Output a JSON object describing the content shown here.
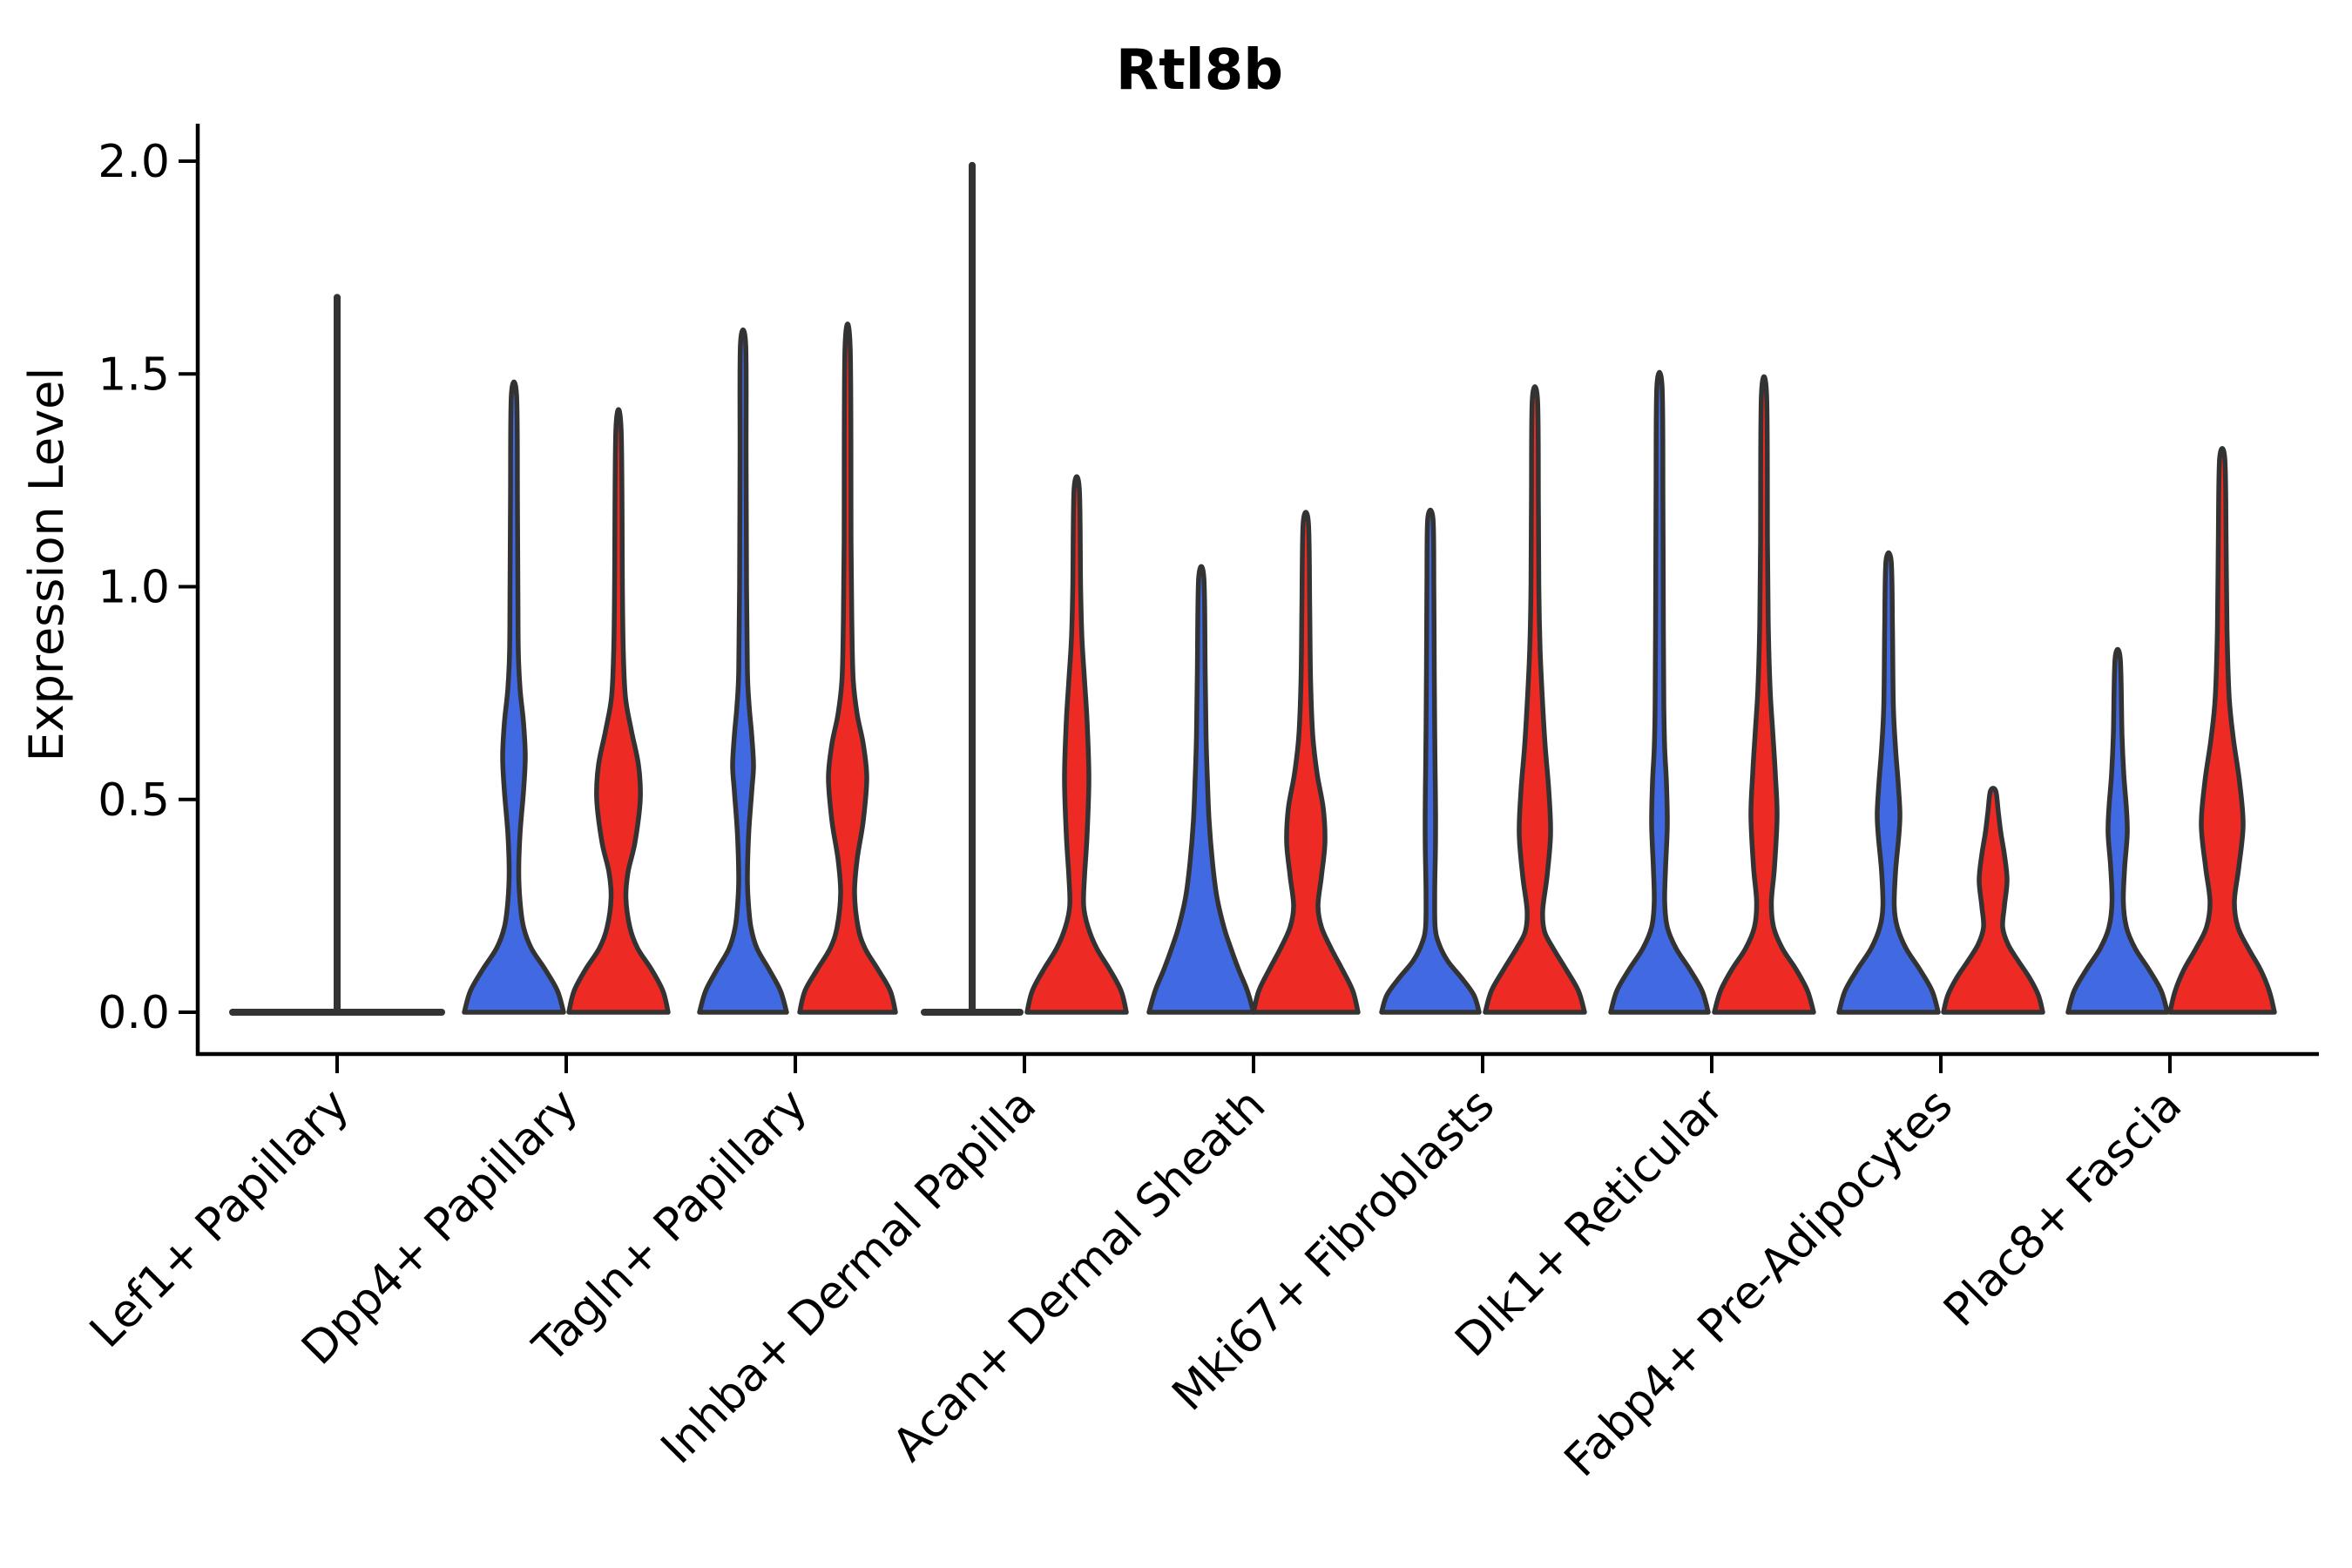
{
  "title": "Rtl8b",
  "chart_data": {
    "type": "violin",
    "title": "Rtl8b",
    "xlabel": "",
    "ylabel": "Expression Level",
    "ylim": [
      0,
      2.0
    ],
    "yticks": [
      0.0,
      0.5,
      1.0,
      1.5,
      2.0
    ],
    "ytick_labels": [
      "0.0",
      "0.5",
      "1.0",
      "1.5",
      "2.0"
    ],
    "grid": false,
    "legend": "none",
    "categories": [
      "Lef1+ Papillary",
      "Dpp4+ Papillary",
      "Tagln+ Papillary",
      "Inhba+ Dermal Papilla",
      "Acan+ Dermal Sheath",
      "Mki67+ Fibroblasts",
      "Dlk1+ Reticular",
      "Fabp4+ Pre-Adipocytes",
      "Plac8+ Fascia"
    ],
    "series": [
      {
        "name": "group-blue",
        "color": "#4169E1"
      },
      {
        "name": "group-red",
        "color": "#ED2B24"
      }
    ],
    "outline_color": "#333333",
    "violins": [
      {
        "category": 0,
        "side": "center",
        "series": null,
        "collapsed": true,
        "max": 1.68,
        "base_halfspan": 120,
        "profile": []
      },
      {
        "category": 1,
        "side": "left",
        "series": 0,
        "collapsed": false,
        "max": 1.45,
        "mode_bulge": 0.6,
        "profile": [
          [
            0,
            57
          ],
          [
            0.05,
            50
          ],
          [
            0.1,
            36
          ],
          [
            0.15,
            20
          ],
          [
            0.2,
            11
          ],
          [
            0.26,
            7
          ],
          [
            0.33,
            5.5
          ],
          [
            0.42,
            7
          ],
          [
            0.52,
            11
          ],
          [
            0.6,
            13
          ],
          [
            0.68,
            11
          ],
          [
            0.76,
            7
          ],
          [
            0.85,
            5
          ],
          [
            1.0,
            4.5
          ],
          [
            1.2,
            4
          ],
          [
            1.45,
            3
          ]
        ]
      },
      {
        "category": 1,
        "side": "right",
        "series": 1,
        "collapsed": false,
        "max": 1.37,
        "mode_bulge": 0.5,
        "profile": [
          [
            0,
            57
          ],
          [
            0.05,
            51
          ],
          [
            0.1,
            38
          ],
          [
            0.15,
            22
          ],
          [
            0.2,
            13
          ],
          [
            0.27,
            8.5
          ],
          [
            0.33,
            11
          ],
          [
            0.4,
            19
          ],
          [
            0.5,
            25
          ],
          [
            0.58,
            23
          ],
          [
            0.66,
            15
          ],
          [
            0.74,
            8
          ],
          [
            0.85,
            5.5
          ],
          [
            1.0,
            4.5
          ],
          [
            1.37,
            3
          ]
        ]
      },
      {
        "category": 2,
        "side": "left",
        "series": 0,
        "collapsed": false,
        "max": 1.57,
        "mode_bulge": 0.58,
        "profile": [
          [
            0,
            50
          ],
          [
            0.05,
            43
          ],
          [
            0.1,
            30
          ],
          [
            0.15,
            16
          ],
          [
            0.2,
            9
          ],
          [
            0.26,
            6
          ],
          [
            0.32,
            5
          ],
          [
            0.42,
            6.5
          ],
          [
            0.52,
            10
          ],
          [
            0.58,
            12
          ],
          [
            0.65,
            10
          ],
          [
            0.72,
            7
          ],
          [
            0.8,
            5
          ],
          [
            1.0,
            4
          ],
          [
            1.3,
            3.5
          ],
          [
            1.57,
            3
          ]
        ]
      },
      {
        "category": 2,
        "side": "right",
        "series": 1,
        "collapsed": false,
        "max": 1.56,
        "mode_bulge": 0.55,
        "profile": [
          [
            0,
            55
          ],
          [
            0.05,
            49
          ],
          [
            0.1,
            35
          ],
          [
            0.15,
            20
          ],
          [
            0.2,
            12
          ],
          [
            0.28,
            8
          ],
          [
            0.36,
            11
          ],
          [
            0.45,
            18
          ],
          [
            0.55,
            22
          ],
          [
            0.63,
            18
          ],
          [
            0.7,
            11
          ],
          [
            0.78,
            6.5
          ],
          [
            0.9,
            5
          ],
          [
            1.1,
            4
          ],
          [
            1.56,
            3
          ]
        ]
      },
      {
        "category": 3,
        "side": "left",
        "series": 0,
        "collapsed": true,
        "max": 1.99,
        "base_halfspan": 55,
        "profile": []
      },
      {
        "category": 3,
        "side": "right",
        "series": 1,
        "collapsed": false,
        "max": 1.23,
        "mode_bulge": 0.55,
        "profile": [
          [
            0,
            57
          ],
          [
            0.05,
            51
          ],
          [
            0.1,
            38
          ],
          [
            0.15,
            23
          ],
          [
            0.2,
            13
          ],
          [
            0.25,
            8
          ],
          [
            0.32,
            9
          ],
          [
            0.42,
            12
          ],
          [
            0.55,
            14
          ],
          [
            0.68,
            12
          ],
          [
            0.78,
            9
          ],
          [
            0.88,
            6
          ],
          [
            1.0,
            4.5
          ],
          [
            1.23,
            3
          ]
        ]
      },
      {
        "category": 4,
        "side": "left",
        "series": 0,
        "collapsed": false,
        "max": 1.02,
        "mode_bulge": 0.0,
        "profile": [
          [
            0,
            60
          ],
          [
            0.05,
            53
          ],
          [
            0.1,
            43
          ],
          [
            0.15,
            34
          ],
          [
            0.2,
            26
          ],
          [
            0.27,
            18
          ],
          [
            0.35,
            13
          ],
          [
            0.45,
            9
          ],
          [
            0.55,
            7
          ],
          [
            0.65,
            5.5
          ],
          [
            0.8,
            4.5
          ],
          [
            1.02,
            3
          ]
        ]
      },
      {
        "category": 4,
        "side": "right",
        "series": 1,
        "collapsed": false,
        "max": 1.15,
        "mode_bulge": 0.4,
        "profile": [
          [
            0,
            60
          ],
          [
            0.05,
            54
          ],
          [
            0.1,
            42
          ],
          [
            0.15,
            29
          ],
          [
            0.2,
            18
          ],
          [
            0.25,
            14
          ],
          [
            0.32,
            18
          ],
          [
            0.4,
            22
          ],
          [
            0.48,
            20
          ],
          [
            0.56,
            13
          ],
          [
            0.65,
            8
          ],
          [
            0.78,
            5.5
          ],
          [
            0.95,
            4.5
          ],
          [
            1.15,
            3
          ]
        ]
      },
      {
        "category": 5,
        "side": "left",
        "series": 0,
        "collapsed": false,
        "max": 1.16,
        "mode_bulge": 0.46,
        "profile": [
          [
            0,
            56
          ],
          [
            0.04,
            50
          ],
          [
            0.08,
            36
          ],
          [
            0.12,
            20
          ],
          [
            0.16,
            10
          ],
          [
            0.2,
            5.5
          ],
          [
            0.28,
            5
          ],
          [
            0.38,
            5.8
          ],
          [
            0.46,
            6
          ],
          [
            0.56,
            5.5
          ],
          [
            0.66,
            5
          ],
          [
            0.8,
            4.5
          ],
          [
            1.0,
            4
          ],
          [
            1.16,
            3
          ]
        ]
      },
      {
        "category": 5,
        "side": "right",
        "series": 1,
        "collapsed": false,
        "max": 1.44,
        "mode_bulge": 0.42,
        "profile": [
          [
            0,
            57
          ],
          [
            0.05,
            50
          ],
          [
            0.1,
            36
          ],
          [
            0.15,
            21
          ],
          [
            0.19,
            11
          ],
          [
            0.24,
            9
          ],
          [
            0.32,
            14
          ],
          [
            0.42,
            18
          ],
          [
            0.52,
            16
          ],
          [
            0.62,
            12
          ],
          [
            0.72,
            9
          ],
          [
            0.85,
            6
          ],
          [
            1.0,
            4.5
          ],
          [
            1.2,
            4
          ],
          [
            1.44,
            3
          ]
        ]
      },
      {
        "category": 6,
        "side": "left",
        "series": 0,
        "collapsed": false,
        "max": 1.47,
        "mode_bulge": 0.44,
        "profile": [
          [
            0,
            56
          ],
          [
            0.05,
            49
          ],
          [
            0.1,
            35
          ],
          [
            0.15,
            19
          ],
          [
            0.2,
            9
          ],
          [
            0.26,
            6
          ],
          [
            0.34,
            7
          ],
          [
            0.44,
            9
          ],
          [
            0.54,
            8
          ],
          [
            0.62,
            6
          ],
          [
            0.72,
            5
          ],
          [
            0.9,
            4.5
          ],
          [
            1.2,
            4
          ],
          [
            1.47,
            3
          ]
        ]
      },
      {
        "category": 6,
        "side": "right",
        "series": 1,
        "collapsed": false,
        "max": 1.45,
        "mode_bulge": 0.46,
        "profile": [
          [
            0,
            57
          ],
          [
            0.05,
            50
          ],
          [
            0.1,
            37
          ],
          [
            0.15,
            21
          ],
          [
            0.2,
            11
          ],
          [
            0.26,
            8.5
          ],
          [
            0.34,
            12
          ],
          [
            0.46,
            15
          ],
          [
            0.56,
            13
          ],
          [
            0.66,
            10
          ],
          [
            0.76,
            7
          ],
          [
            0.9,
            5
          ],
          [
            1.1,
            4
          ],
          [
            1.45,
            3
          ]
        ]
      },
      {
        "category": 7,
        "side": "left",
        "series": 0,
        "collapsed": false,
        "max": 1.06,
        "mode_bulge": 0.47,
        "profile": [
          [
            0,
            57
          ],
          [
            0.05,
            50
          ],
          [
            0.1,
            36
          ],
          [
            0.15,
            20
          ],
          [
            0.2,
            10
          ],
          [
            0.25,
            6.5
          ],
          [
            0.33,
            8
          ],
          [
            0.42,
            12
          ],
          [
            0.47,
            13
          ],
          [
            0.54,
            11
          ],
          [
            0.62,
            8
          ],
          [
            0.72,
            5.5
          ],
          [
            0.9,
            4.5
          ],
          [
            1.06,
            3
          ]
        ]
      },
      {
        "category": 7,
        "side": "right",
        "series": 1,
        "collapsed": false,
        "max": 0.52,
        "mode_bulge": 0.31,
        "profile": [
          [
            0,
            57
          ],
          [
            0.04,
            52
          ],
          [
            0.08,
            42
          ],
          [
            0.12,
            29
          ],
          [
            0.16,
            17
          ],
          [
            0.2,
            11
          ],
          [
            0.25,
            13
          ],
          [
            0.31,
            16
          ],
          [
            0.37,
            13
          ],
          [
            0.42,
            9
          ],
          [
            0.47,
            6
          ],
          [
            0.52,
            3
          ]
        ]
      },
      {
        "category": 8,
        "side": "left",
        "series": 0,
        "collapsed": false,
        "max": 0.83,
        "mode_bulge": 0.44,
        "profile": [
          [
            0,
            57
          ],
          [
            0.05,
            50
          ],
          [
            0.1,
            36
          ],
          [
            0.15,
            20
          ],
          [
            0.2,
            10
          ],
          [
            0.26,
            6.5
          ],
          [
            0.34,
            8
          ],
          [
            0.42,
            11
          ],
          [
            0.48,
            10
          ],
          [
            0.56,
            7
          ],
          [
            0.65,
            5
          ],
          [
            0.83,
            3
          ]
        ]
      },
      {
        "category": 8,
        "side": "right",
        "series": 1,
        "collapsed": false,
        "max": 1.3,
        "mode_bulge": 0.45,
        "profile": [
          [
            0,
            60
          ],
          [
            0.05,
            54
          ],
          [
            0.1,
            44
          ],
          [
            0.15,
            30
          ],
          [
            0.2,
            18
          ],
          [
            0.26,
            14
          ],
          [
            0.34,
            19
          ],
          [
            0.44,
            24
          ],
          [
            0.54,
            20
          ],
          [
            0.64,
            13
          ],
          [
            0.74,
            8
          ],
          [
            0.9,
            5.5
          ],
          [
            1.1,
            4.5
          ],
          [
            1.3,
            3
          ]
        ]
      }
    ]
  },
  "layout_values": {
    "violin_max_of_each": {
      "Lef1+ Papillary": {
        "single": 1.68
      },
      "Dpp4+ Papillary": {
        "blue": 1.45,
        "red": 1.37
      },
      "Tagln+ Papillary": {
        "blue": 1.57,
        "red": 1.56
      },
      "Inhba+ Dermal Papilla": {
        "blue": 1.99,
        "red": 1.23
      },
      "Acan+ Dermal Sheath": {
        "blue": 1.02,
        "red": 1.15
      },
      "Mki67+ Fibroblasts": {
        "blue": 1.16,
        "red": 1.44
      },
      "Dlk1+ Reticular": {
        "blue": 1.47,
        "red": 1.45
      },
      "Fabp4+ Pre-Adipocytes": {
        "blue": 1.06,
        "red": 0.52
      },
      "Plac8+ Fascia": {
        "blue": 0.83,
        "red": 1.3
      }
    }
  }
}
